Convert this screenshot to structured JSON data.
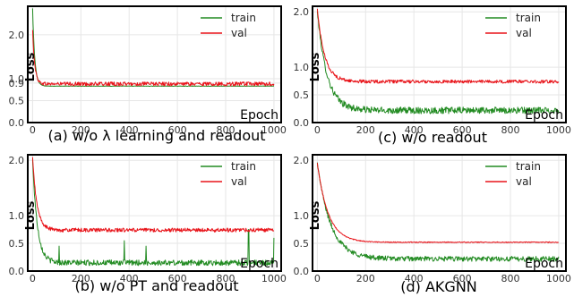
{
  "colors": {
    "train": "#228B22",
    "val": "#e8141a",
    "frame": "#000000",
    "grid": "#e6e6e6"
  },
  "chart_data": [
    {
      "type": "line",
      "caption": "(a) w/o λ learning and readout",
      "xlabel": "Epoch",
      "ylabel": "Loss",
      "xlim": [
        -20,
        1030
      ],
      "ylim": [
        0.0,
        2.65
      ],
      "xticks": [
        0,
        200,
        400,
        600,
        800,
        1000
      ],
      "yticks": [
        0.0,
        0.5,
        0.9,
        1.0,
        2.0
      ],
      "ytick_labels": [
        "0.0",
        "0.5",
        "0.9",
        "1.0",
        "2.0"
      ],
      "grid": true,
      "legend": "top-right",
      "series": [
        {
          "name": "train",
          "start": 2.6,
          "end": 0.83,
          "decay": 9,
          "noise": 0.004,
          "spikes": []
        },
        {
          "name": "val",
          "start": 2.1,
          "end": 0.88,
          "decay": 9,
          "noise": 0.045,
          "spikes": []
        }
      ]
    },
    {
      "type": "line",
      "caption": "(c) w/o readout",
      "xlabel": "Epoch",
      "ylabel": "Loss",
      "xlim": [
        -20,
        1030
      ],
      "ylim": [
        0.0,
        2.1
      ],
      "xticks": [
        0,
        200,
        400,
        600,
        800,
        1000
      ],
      "yticks": [
        0.0,
        0.5,
        1.0,
        2.0
      ],
      "ytick_labels": [
        "0.0",
        "0.5",
        "1.0",
        "2.0"
      ],
      "grid": true,
      "legend": "top-right",
      "series": [
        {
          "name": "train",
          "start": 2.0,
          "end": 0.22,
          "decay": 40,
          "noise": 0.06,
          "spikes": []
        },
        {
          "name": "val",
          "start": 2.05,
          "end": 0.74,
          "decay": 30,
          "noise": 0.03,
          "spikes": []
        }
      ]
    },
    {
      "type": "line",
      "caption": "(b) w/o PT and readout",
      "xlabel": "Epoch",
      "ylabel": "Loss",
      "xlim": [
        -20,
        1030
      ],
      "ylim": [
        0.0,
        2.1
      ],
      "xticks": [
        0,
        200,
        400,
        600,
        800,
        1000
      ],
      "yticks": [
        0.0,
        0.5,
        1.0,
        2.0
      ],
      "ytick_labels": [
        "0.0",
        "0.5",
        "1.0",
        "2.0"
      ],
      "grid": true,
      "legend": "top-right",
      "series": [
        {
          "name": "train",
          "start": 2.0,
          "end": 0.15,
          "decay": 20,
          "noise": 0.05,
          "spikes": [
            [
              110,
              0.45
            ],
            [
              380,
              0.55
            ],
            [
              470,
              0.45
            ],
            [
              895,
              0.75
            ],
            [
              1000,
              0.6
            ]
          ]
        },
        {
          "name": "val",
          "start": 2.05,
          "end": 0.74,
          "decay": 18,
          "noise": 0.035,
          "spikes": []
        }
      ]
    },
    {
      "type": "line",
      "caption": "(d) AKGNN",
      "xlabel": "Epoch",
      "ylabel": "Loss",
      "xlim": [
        -20,
        1030
      ],
      "ylim": [
        0.0,
        2.1
      ],
      "xticks": [
        0,
        200,
        400,
        600,
        800,
        1000
      ],
      "yticks": [
        0.0,
        0.5,
        1.0,
        2.0
      ],
      "ytick_labels": [
        "0.0",
        "0.5",
        "1.0",
        "2.0"
      ],
      "grid": true,
      "legend": "top-right",
      "series": [
        {
          "name": "train",
          "start": 1.95,
          "end": 0.22,
          "decay": 55,
          "noise": 0.045,
          "spikes": []
        },
        {
          "name": "val",
          "start": 1.95,
          "end": 0.52,
          "decay": 45,
          "noise": 0.008,
          "spikes": []
        }
      ]
    }
  ]
}
